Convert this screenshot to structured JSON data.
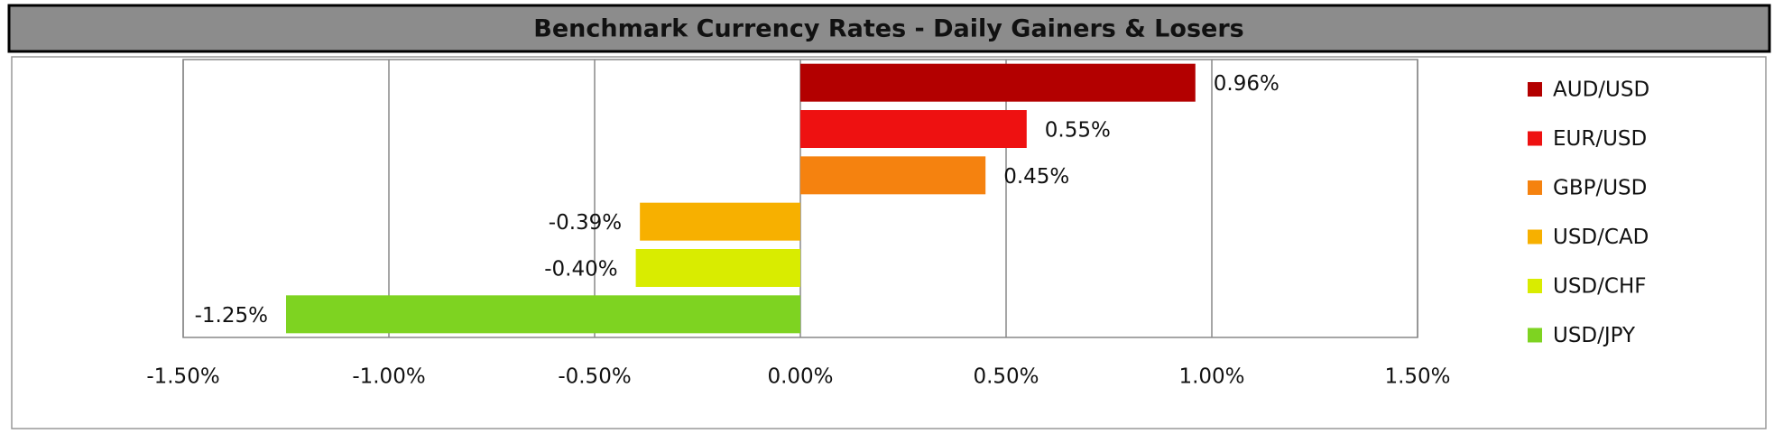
{
  "chart_data": {
    "type": "bar",
    "orientation": "horizontal",
    "title": "Benchmark Currency Rates - Daily Gainers & Losers",
    "categories": [
      "AUD/USD",
      "EUR/USD",
      "GBP/USD",
      "USD/CAD",
      "USD/CHF",
      "USD/JPY"
    ],
    "values": [
      0.96,
      0.55,
      0.45,
      -0.39,
      -0.4,
      -1.25
    ],
    "value_labels": [
      "0.96%",
      "0.55%",
      "0.45%",
      "-0.39%",
      "-0.40%",
      "-1.25%"
    ],
    "colors": [
      "#b30000",
      "#ee1111",
      "#f5820f",
      "#f7b000",
      "#d9ec00",
      "#7ed321"
    ],
    "xlim": [
      -1.5,
      1.5
    ],
    "xticks": [
      {
        "value": -1.5,
        "label": "-1.50%"
      },
      {
        "value": -1.0,
        "label": "-1.00%"
      },
      {
        "value": -0.5,
        "label": "-0.50%"
      },
      {
        "value": 0,
        "label": "0.00%"
      },
      {
        "value": 0.5,
        "label": "0.50%"
      },
      {
        "value": 1.0,
        "label": "1.00%"
      },
      {
        "value": 1.5,
        "label": "1.50%"
      }
    ],
    "grid": true,
    "legend": "right"
  }
}
